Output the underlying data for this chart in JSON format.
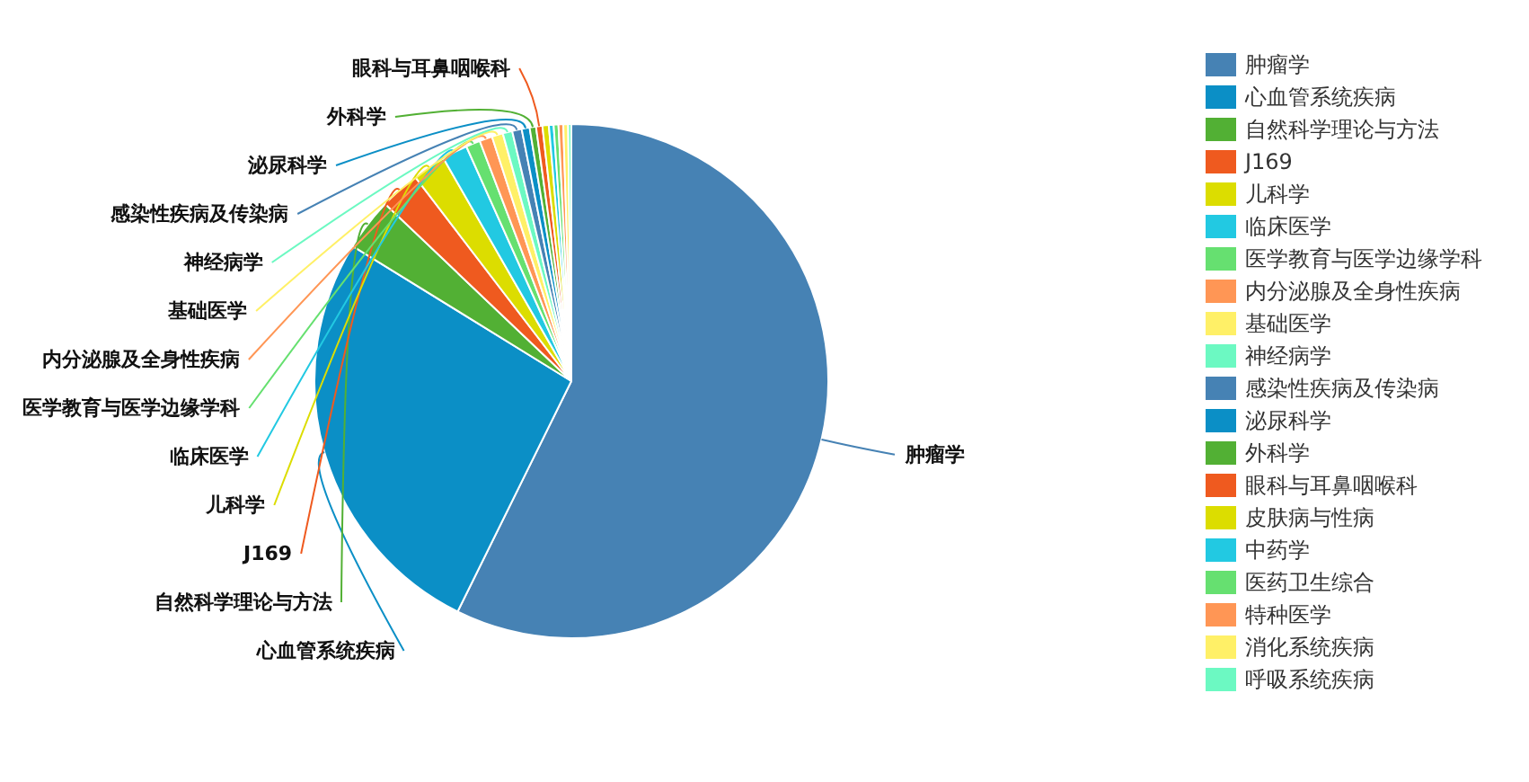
{
  "chart_data": {
    "type": "pie",
    "categories": [
      "肿瘤学",
      "心血管系统疾病",
      "自然科学理论与方法",
      "J169",
      "儿科学",
      "临床医学",
      "医学教育与医学边缘学科",
      "内分泌腺及全身性疾病",
      "基础医学",
      "神经病学",
      "感染性疾病及传染病",
      "泌尿科学",
      "外科学",
      "眼科与耳鼻咽喉科",
      "皮肤病与性病",
      "中药学",
      "医药卫生综合",
      "特种医学",
      "消化系统疾病",
      "呼吸系统疾病"
    ],
    "values": [
      57.3,
      26.5,
      3.3,
      2.5,
      2.1,
      1.6,
      0.9,
      0.8,
      0.7,
      0.6,
      0.6,
      0.5,
      0.4,
      0.4,
      0.4,
      0.3,
      0.3,
      0.3,
      0.3,
      0.2
    ],
    "colors": [
      "#4682b4",
      "#0b8fc6",
      "#52b034",
      "#ef5a1f",
      "#dcdd00",
      "#22c9e2",
      "#66e070",
      "#ff9655",
      "#fff067",
      "#6cf9c2",
      "#4682b4",
      "#0b8fc6",
      "#52b034",
      "#ef5a1f",
      "#dcdd00",
      "#22c9e2",
      "#66e070",
      "#ff9655",
      "#fff067",
      "#6cf9c2"
    ],
    "legend": "right"
  }
}
